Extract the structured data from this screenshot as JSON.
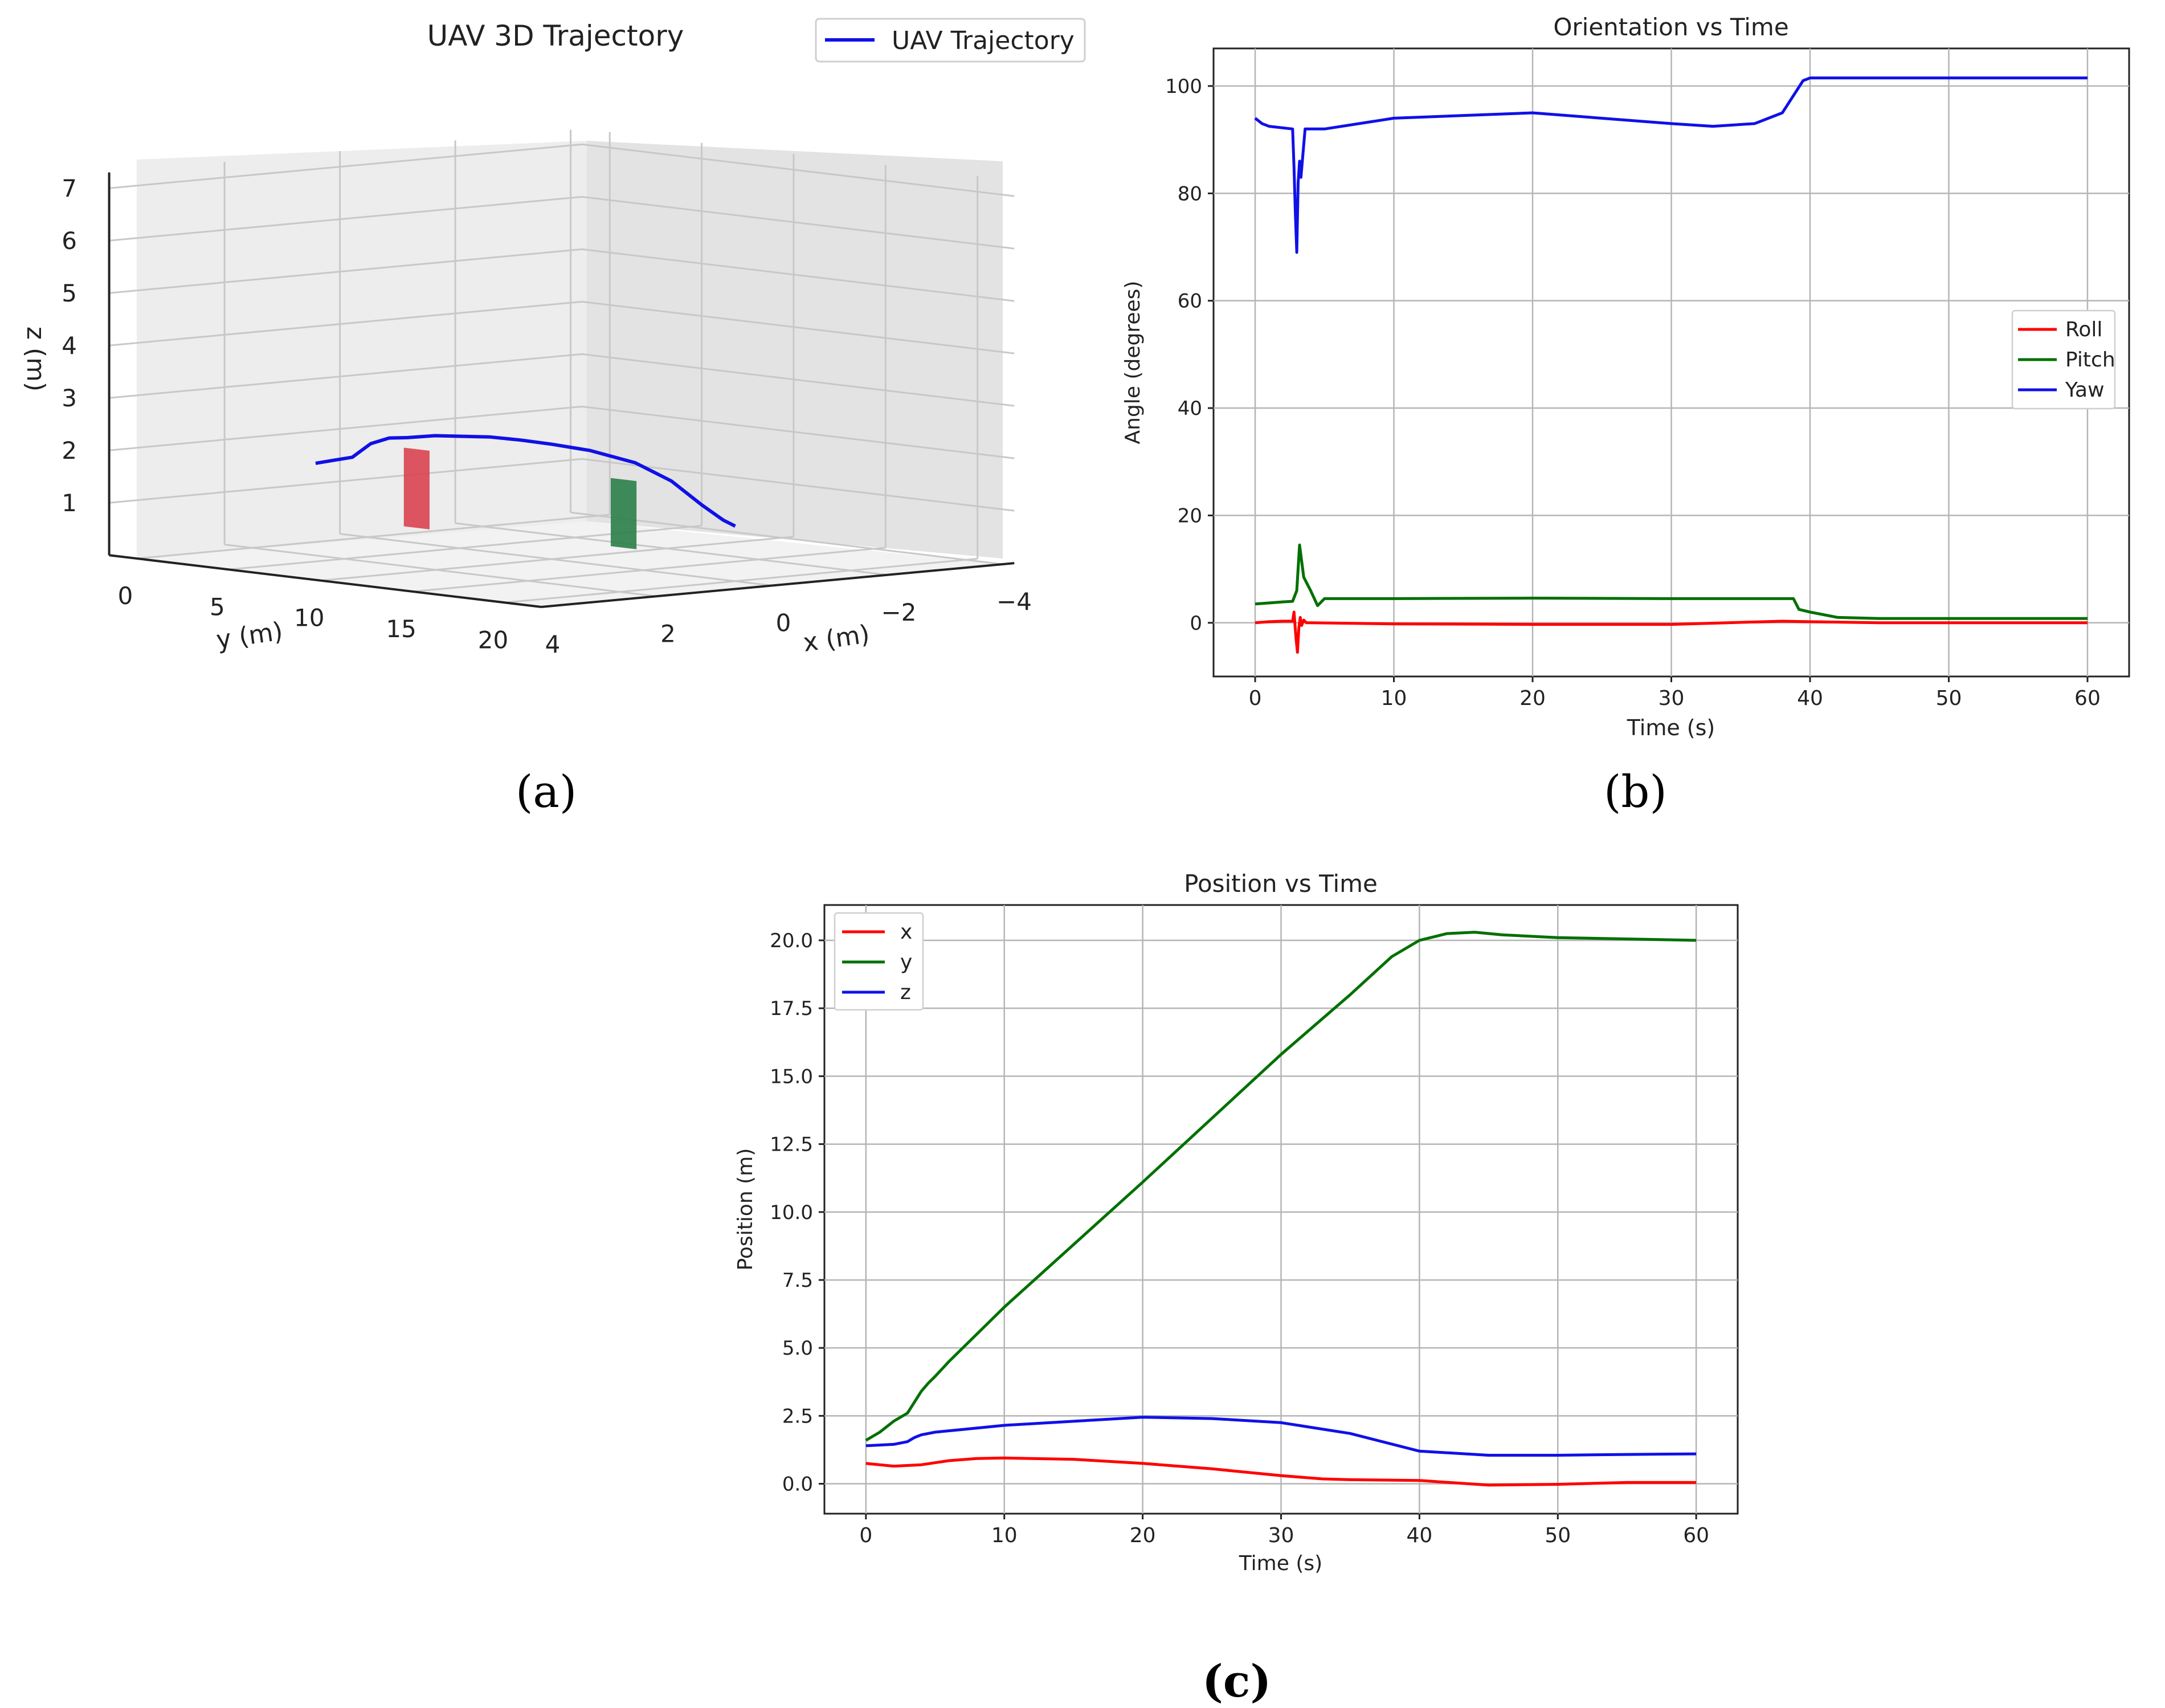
{
  "captions": {
    "a": "(a)",
    "b": "(b)",
    "c": "(c)"
  },
  "colors": {
    "x": "#ff0000",
    "y": "#007000",
    "z": "#1010e8",
    "obstacle_red": "#d8434f",
    "obstacle_green": "#2a8048"
  },
  "chart_data": [
    {
      "id": "a",
      "type": "line",
      "projection": "3d",
      "title": "UAV 3D Trajectory",
      "xlabel": "x (m)",
      "ylabel": "y (m)",
      "zlabel": "z (m)",
      "x_ticks": [
        "4",
        "2",
        "0",
        "−2",
        "−4"
      ],
      "y_ticks": [
        "0",
        "5",
        "10",
        "15",
        "20"
      ],
      "z_ticks": [
        "1",
        "2",
        "3",
        "4",
        "5",
        "6",
        "7"
      ],
      "legend": {
        "entries": [
          "UAV Trajectory"
        ],
        "placement": "top-right"
      },
      "series": [
        {
          "name": "UAV Trajectory",
          "points": [
            {
              "x": 0.9,
              "y": 0,
              "z": 1.5
            },
            {
              "x": 0.9,
              "y": 1.0,
              "z": 1.6
            },
            {
              "x": 0.9,
              "y": 2.0,
              "z": 1.7
            },
            {
              "x": 0.9,
              "y": 3.0,
              "z": 2.0
            },
            {
              "x": 0.9,
              "y": 4.0,
              "z": 2.15
            },
            {
              "x": 0.9,
              "y": 5.0,
              "z": 2.2
            },
            {
              "x": 0.9,
              "y": 6.5,
              "z": 2.3
            },
            {
              "x": 0.9,
              "y": 8.0,
              "z": 2.35
            },
            {
              "x": 0.9,
              "y": 9.5,
              "z": 2.4
            },
            {
              "x": 0.85,
              "y": 11.0,
              "z": 2.4
            },
            {
              "x": 0.8,
              "y": 12.5,
              "z": 2.38
            },
            {
              "x": 0.6,
              "y": 14.0,
              "z": 2.3
            },
            {
              "x": 0.3,
              "y": 15.5,
              "z": 2.1
            },
            {
              "x": 0.15,
              "y": 17.0,
              "z": 1.8
            },
            {
              "x": 0.1,
              "y": 18.5,
              "z": 1.4
            },
            {
              "x": 0.05,
              "y": 19.5,
              "z": 1.15
            },
            {
              "x": 0.0,
              "y": 20.0,
              "z": 1.05
            }
          ]
        }
      ],
      "obstacles": [
        {
          "color": "red",
          "x": 0.9,
          "y": 5.5,
          "z_min": 0.5,
          "z_max": 2.0
        },
        {
          "color": "green",
          "x": 0.5,
          "y": 15.5,
          "z_min": 0.5,
          "z_max": 1.8
        }
      ]
    },
    {
      "id": "b",
      "type": "line",
      "title": "Orientation vs Time",
      "xlabel": "Time (s)",
      "ylabel": "Angle (degrees)",
      "xlim": [
        -3,
        63
      ],
      "ylim": [
        -10,
        107
      ],
      "x_ticks": [
        0,
        10,
        20,
        30,
        40,
        50,
        60
      ],
      "y_ticks": [
        0,
        20,
        40,
        60,
        80,
        100
      ],
      "grid": true,
      "legend": {
        "entries": [
          "Roll",
          "Pitch",
          "Yaw"
        ],
        "placement": "center-right"
      },
      "series": [
        {
          "name": "Roll",
          "color": "#ff0000",
          "x": [
            0,
            1,
            2,
            2.7,
            2.8,
            2.95,
            3.05,
            3.15,
            3.25,
            3.35,
            3.5,
            3.7,
            4,
            10,
            20,
            30,
            38,
            40,
            45,
            50,
            60
          ],
          "y": [
            0,
            0.2,
            0.3,
            0.3,
            2,
            -3,
            -5.5,
            -1,
            1,
            -0.5,
            0.5,
            0,
            0,
            -0.2,
            -0.3,
            -0.3,
            0.3,
            0.2,
            0,
            0,
            0
          ]
        },
        {
          "name": "Pitch",
          "color": "#007000",
          "x": [
            0,
            1,
            2,
            2.7,
            3.0,
            3.2,
            3.5,
            4,
            4.5,
            5,
            10,
            20,
            30,
            38.8,
            39.2,
            40,
            42,
            45,
            50,
            60
          ],
          "y": [
            3.5,
            3.7,
            3.9,
            4,
            6,
            14.5,
            8.5,
            6,
            3.2,
            4.5,
            4.5,
            4.6,
            4.5,
            4.5,
            2.5,
            2,
            1,
            0.8,
            0.8,
            0.8
          ]
        },
        {
          "name": "Yaw",
          "color": "#1010e8",
          "x": [
            0,
            0.5,
            1,
            2.7,
            2.8,
            2.9,
            3.0,
            3.1,
            3.2,
            3.3,
            3.6,
            4,
            5,
            10,
            20,
            30,
            33,
            36,
            38,
            39,
            39.5,
            40,
            45,
            50,
            60
          ],
          "y": [
            94,
            93,
            92.5,
            92,
            85,
            76,
            69,
            82,
            86,
            83,
            92,
            92,
            92,
            94,
            95,
            93,
            92.5,
            93,
            95,
            99,
            101,
            101.5,
            101.5,
            101.5,
            101.5
          ]
        }
      ]
    },
    {
      "id": "c",
      "type": "line",
      "title": "Position vs Time",
      "xlabel": "Time (s)",
      "ylabel": "Position (m)",
      "xlim": [
        -3,
        63
      ],
      "ylim": [
        -1.1,
        21.3
      ],
      "x_ticks": [
        0,
        10,
        20,
        30,
        40,
        50,
        60
      ],
      "y_ticks": [
        "0.0",
        "2.5",
        "5.0",
        "7.5",
        "10.0",
        "12.5",
        "15.0",
        "17.5",
        "20.0"
      ],
      "grid": true,
      "legend": {
        "entries": [
          "x",
          "y",
          "z"
        ],
        "placement": "top-left"
      },
      "series": [
        {
          "name": "x",
          "color": "#ff0000",
          "x": [
            0,
            2,
            4,
            6,
            8,
            10,
            15,
            20,
            25,
            30,
            33,
            35,
            40,
            45,
            50,
            55,
            60
          ],
          "y": [
            0.75,
            0.65,
            0.7,
            0.85,
            0.93,
            0.95,
            0.9,
            0.75,
            0.55,
            0.3,
            0.18,
            0.15,
            0.12,
            -0.05,
            -0.02,
            0.05,
            0.05
          ]
        },
        {
          "name": "y",
          "color": "#007000",
          "x": [
            0,
            1,
            2,
            3,
            3.5,
            4,
            4.5,
            5,
            6,
            10,
            20,
            30,
            35,
            38,
            40,
            42,
            44,
            46,
            50,
            60
          ],
          "y": [
            1.6,
            1.9,
            2.3,
            2.6,
            3.0,
            3.4,
            3.7,
            3.95,
            4.5,
            6.5,
            11.1,
            15.8,
            18.0,
            19.4,
            20.0,
            20.25,
            20.3,
            20.2,
            20.1,
            20.0
          ]
        },
        {
          "name": "z",
          "color": "#1010e8",
          "x": [
            0,
            2,
            3,
            3.5,
            4,
            5,
            7,
            10,
            15,
            20,
            25,
            30,
            35,
            40,
            45,
            50,
            55,
            60
          ],
          "y": [
            1.4,
            1.45,
            1.55,
            1.7,
            1.8,
            1.9,
            2.0,
            2.15,
            2.3,
            2.45,
            2.4,
            2.25,
            1.85,
            1.2,
            1.05,
            1.05,
            1.08,
            1.1
          ]
        }
      ]
    }
  ]
}
